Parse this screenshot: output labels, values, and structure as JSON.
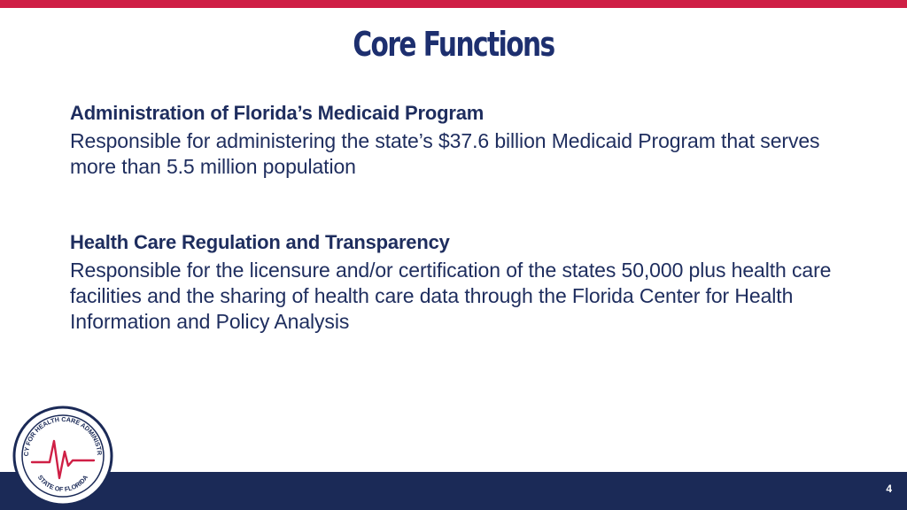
{
  "slide": {
    "title": "Core Functions",
    "page_number": "4"
  },
  "sections": [
    {
      "heading": "Administration of Florida’s Medicaid Program",
      "body": "Responsible for administering the state’s $37.6 billion Medicaid Program that serves more than 5.5 million population"
    },
    {
      "heading": "Health Care Regulation and Transparency",
      "body": "Responsible for the licensure and/or certification of the states 50,000 plus health care facilities and the sharing of health care data through the Florida Center for Health Information and Policy Analysis"
    }
  ],
  "logo": {
    "top_text": "AGENCY FOR HEALTH CARE ADMINISTRATION",
    "bottom_text": "STATE OF FLORIDA",
    "icon": "heartbeat-icon"
  },
  "colors": {
    "accent_red": "#cf1f45",
    "navy": "#1b2a57",
    "title_blue": "#1d2f6f"
  }
}
